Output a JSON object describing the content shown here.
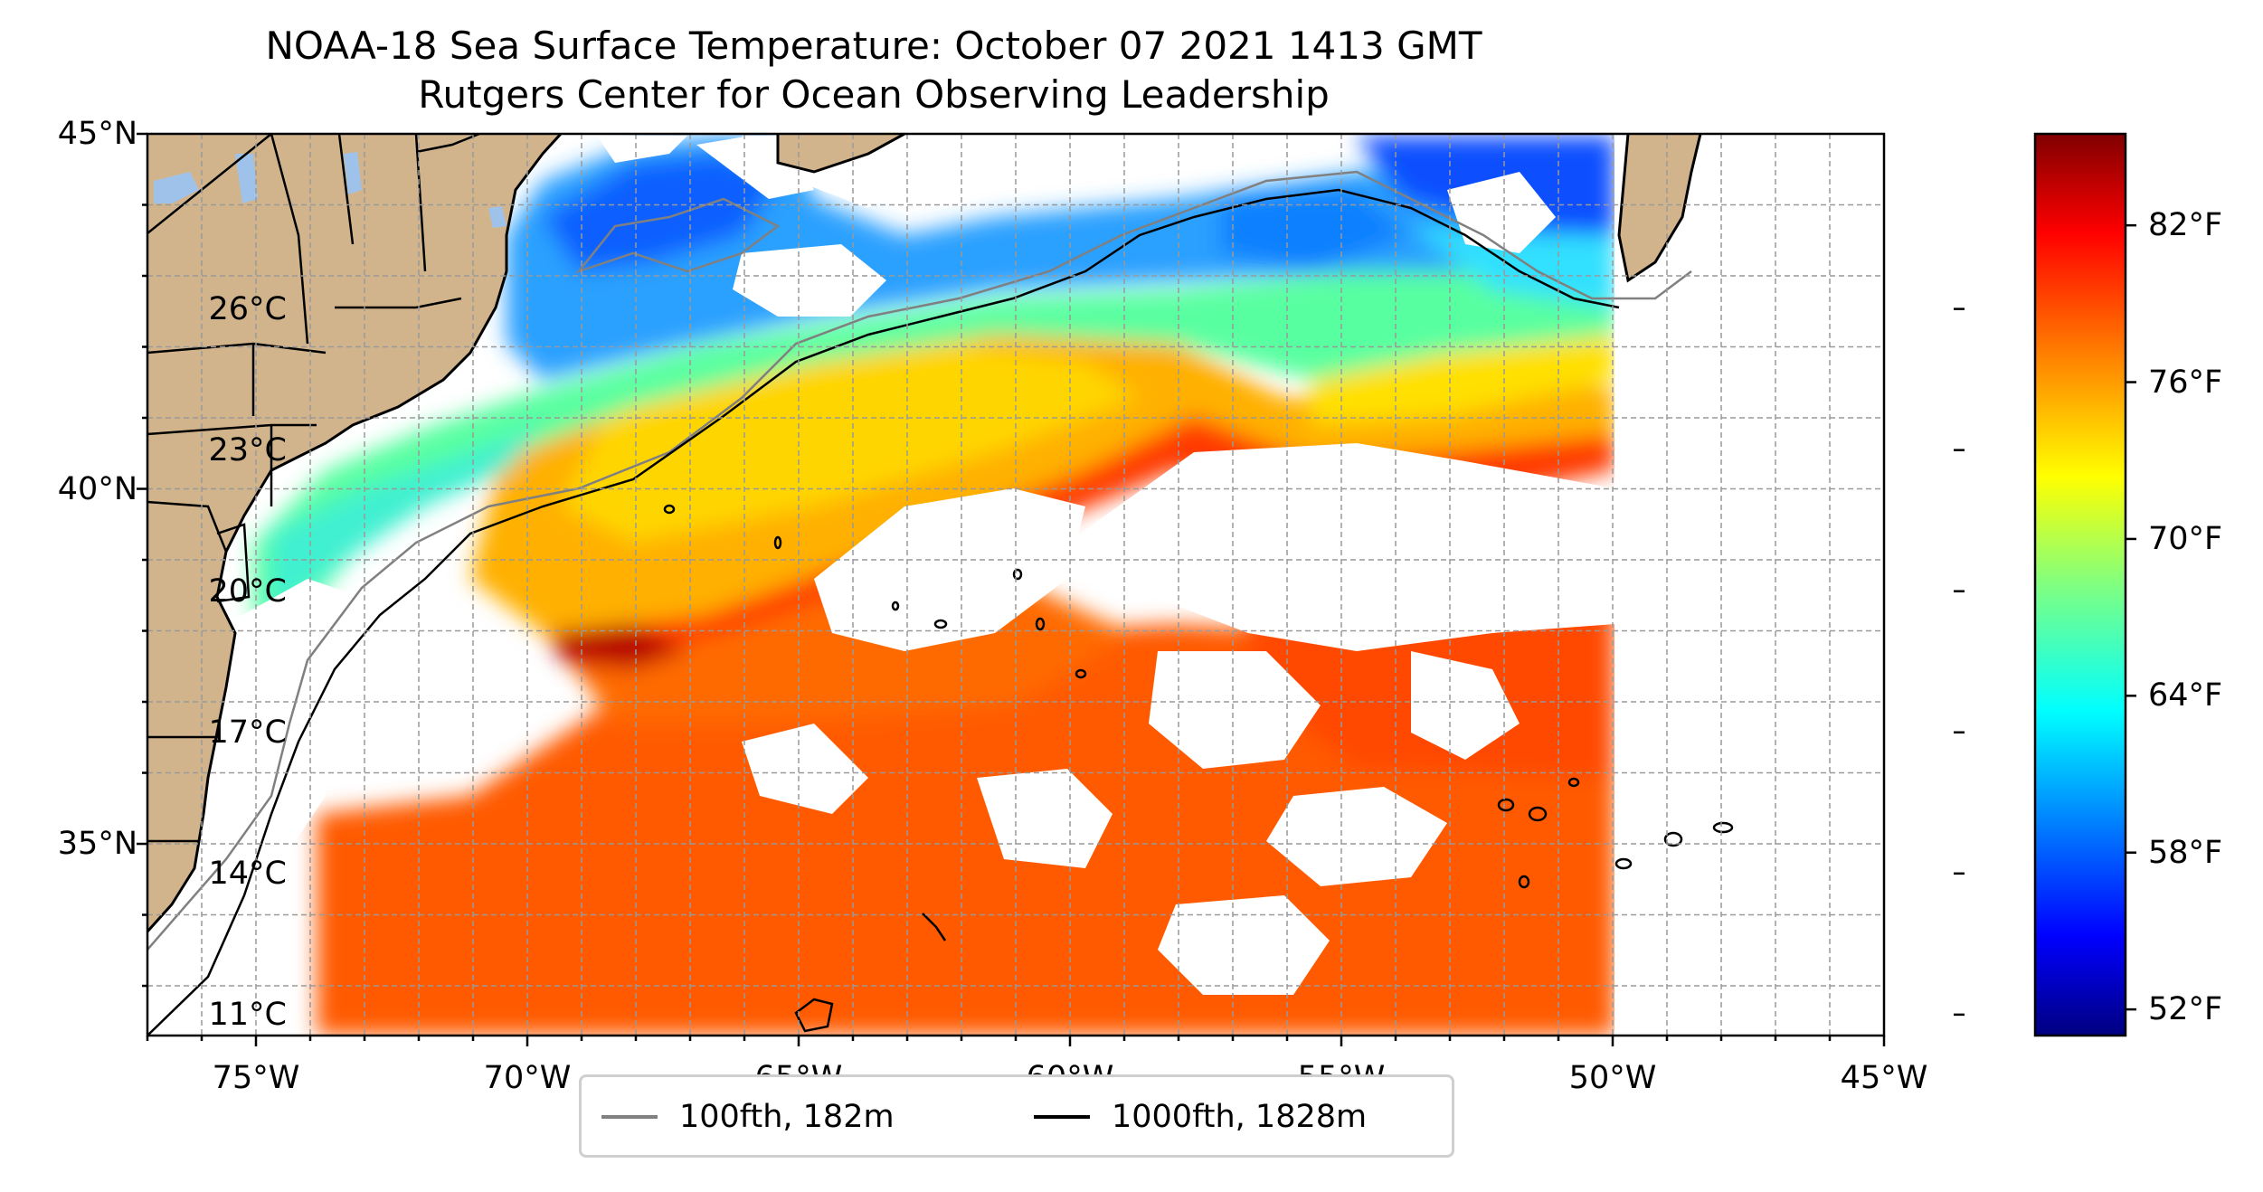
{
  "title": {
    "line1": "NOAA-18 Sea Surface Temperature: October 07 2021 1413 GMT",
    "line2": "Rutgers Center for Ocean Observing Leadership"
  },
  "map": {
    "projection": "equirectangular",
    "lon_range": [
      -77,
      -45
    ],
    "lat_range": [
      32.3,
      45
    ],
    "lat_ticks": [
      {
        "value": 45,
        "label": "45°N"
      },
      {
        "value": 40,
        "label": "40°N"
      },
      {
        "value": 35,
        "label": "35°N"
      }
    ],
    "lon_ticks": [
      {
        "value": -75,
        "label": "75°W"
      },
      {
        "value": -70,
        "label": "70°W"
      },
      {
        "value": -65,
        "label": "65°W"
      },
      {
        "value": -60,
        "label": "60°W"
      },
      {
        "value": -55,
        "label": "55°W"
      },
      {
        "value": -50,
        "label": "50°W"
      },
      {
        "value": -45,
        "label": "45°W"
      }
    ],
    "gridlines": "dashed",
    "land_color": "#d2b48c",
    "lake_color": "#9fc2ea",
    "coastline_color": "#000000",
    "state_border_color": "#000000"
  },
  "sst_field": {
    "description_palette": [
      "#0000ff",
      "#00e5ff",
      "#33ff99",
      "#ffee00",
      "#ffaa00",
      "#ff5500",
      "#cc0000"
    ]
  },
  "colorbar": {
    "colormap": "jet",
    "range_f": [
      51,
      85.5
    ],
    "celsius_ticks": [
      {
        "value": 26,
        "label": "26°C"
      },
      {
        "value": 23,
        "label": "23°C"
      },
      {
        "value": 20,
        "label": "20°C"
      },
      {
        "value": 17,
        "label": "17°C"
      },
      {
        "value": 14,
        "label": "14°C"
      },
      {
        "value": 11,
        "label": "11°C"
      }
    ],
    "fahrenheit_ticks": [
      {
        "value": 82,
        "label": "82°F"
      },
      {
        "value": 76,
        "label": "76°F"
      },
      {
        "value": 70,
        "label": "70°F"
      },
      {
        "value": 64,
        "label": "64°F"
      },
      {
        "value": 58,
        "label": "58°F"
      },
      {
        "value": 52,
        "label": "52°F"
      }
    ]
  },
  "legend": {
    "placement": "bottom-center",
    "entries": [
      {
        "label": "100fth, 182m",
        "color": "#808080"
      },
      {
        "label": "1000fth, 1828m",
        "color": "#000000"
      }
    ]
  }
}
